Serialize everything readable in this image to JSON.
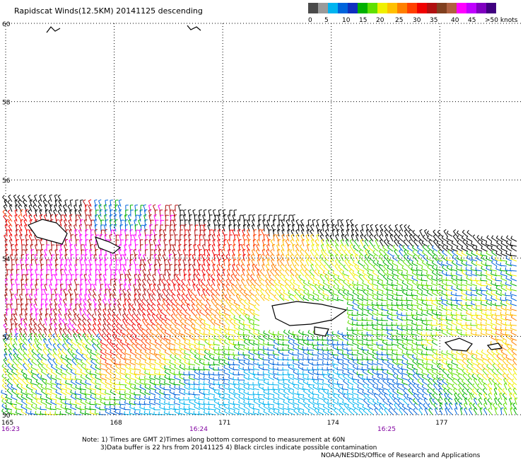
{
  "title": "Rapidscat Winds(12.5KM) 20141125 descending",
  "colorbar": {
    "colors": [
      "#4a4a4a",
      "#9a9a9a",
      "#00b4f0",
      "#0064dc",
      "#1030c0",
      "#00b000",
      "#60e000",
      "#f0f000",
      "#ffc000",
      "#ff8000",
      "#ff4000",
      "#f00000",
      "#b01010",
      "#804020",
      "#b06040",
      "#ff00ff",
      "#c000ff",
      "#8000c0",
      "#400080"
    ],
    "labels": [
      "0",
      "5",
      "10",
      "15",
      "20",
      "25",
      "30",
      "35",
      "40",
      "45",
      ">50 knots"
    ]
  },
  "map": {
    "lat_labels": [
      "60",
      "58",
      "56",
      "54",
      "52",
      "50"
    ],
    "lon_labels": [
      "165",
      "168",
      "171",
      "174",
      "177"
    ],
    "time_labels": [
      "16:23",
      "16:24",
      "16:25"
    ],
    "lat_range": [
      50,
      60
    ],
    "lon_range": [
      165,
      179.3
    ],
    "grid": "dotted"
  },
  "notes": {
    "line1": "Note: 1) Times are GMT 2)Times along bottom correspond to measurement at 60N",
    "line2": "3)Data buffer is 22 hrs from 20141125 4) Black circles indicate possible contamination",
    "credit": "NOAA/NESDIS/Office of Research and Applications"
  },
  "colors": {
    "time_label": "#8000a0",
    "gridline": "#000000"
  }
}
